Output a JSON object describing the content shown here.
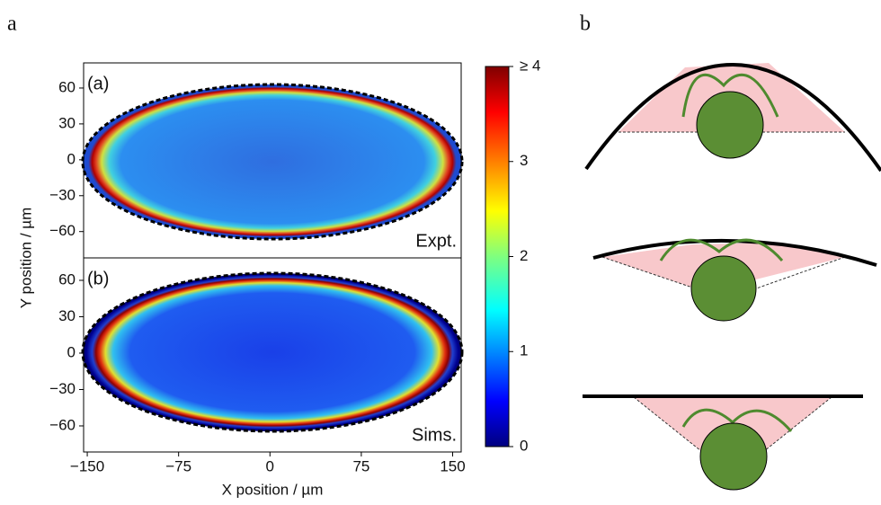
{
  "figure_labels": [
    "a",
    "b"
  ],
  "chart_data": [
    {
      "type": "heatmap",
      "panel": "(a)",
      "annotation": "Expt.",
      "xlim": [
        -153,
        157
      ],
      "ylim": [
        -82,
        81
      ],
      "yticks": [
        {
          "value": -60,
          "label": "−60"
        },
        {
          "value": -30,
          "label": "−30"
        },
        0,
        30,
        60
      ]
    },
    {
      "type": "heatmap",
      "panel": "(b)",
      "annotation": "Sims.",
      "xlabel": "X position / µm",
      "ylabel": "Y position / µm",
      "xlim": [
        -153,
        157
      ],
      "ylim": [
        -81.5,
        78.5
      ],
      "xticks": [
        {
          "value": -150,
          "label": "−150"
        },
        {
          "value": -75,
          "label": "−75"
        },
        0,
        75,
        150
      ],
      "yticks": [
        {
          "value": -60,
          "label": "−60"
        },
        {
          "value": -30,
          "label": "−30"
        },
        0,
        30,
        60
      ]
    },
    {
      "type": "colorbar",
      "clim": [
        0,
        4
      ],
      "ticks": [
        0,
        1,
        2,
        3,
        {
          "value": 4,
          "label": "≥ 4"
        }
      ]
    }
  ]
}
